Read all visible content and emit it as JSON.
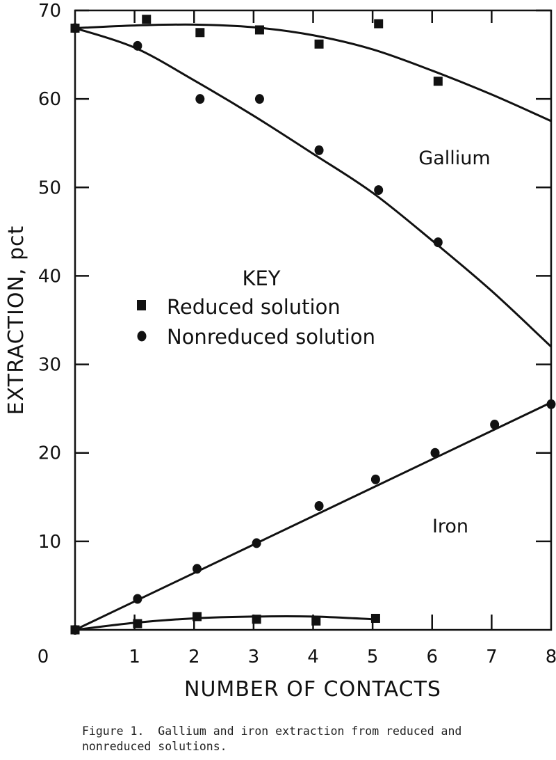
{
  "chart_data": {
    "type": "scatter",
    "title": "",
    "xlabel": "NUMBER OF CONTACTS",
    "ylabel": "EXTRACTION, pct",
    "xlim": [
      0,
      8
    ],
    "ylim": [
      0,
      70
    ],
    "xticks": [
      0,
      1,
      2,
      3,
      4,
      5,
      6,
      7,
      8
    ],
    "yticks": [
      10,
      20,
      30,
      40,
      50,
      60,
      70
    ],
    "x_tick_labels": [
      "0",
      "1",
      "2",
      "3",
      "4",
      "5",
      "6",
      "7",
      "8"
    ],
    "y_tick_labels": [
      "10",
      "20",
      "30",
      "40",
      "50",
      "60",
      "70"
    ],
    "grid": false,
    "legend": {
      "title": "KEY",
      "placement": "center-left",
      "entries": [
        {
          "marker": "square",
          "label": "Reduced solution"
        },
        {
          "marker": "circle",
          "label": "Nonreduced solution"
        }
      ]
    },
    "annotations": [
      "Gallium",
      "Iron"
    ],
    "series": [
      {
        "group": "Gallium",
        "marker": "square",
        "points": [
          [
            0,
            68
          ],
          [
            1.2,
            69
          ],
          [
            2.1,
            67.5
          ],
          [
            3.1,
            67.8
          ],
          [
            4.1,
            66.2
          ],
          [
            5.1,
            68.5
          ],
          [
            6.1,
            62
          ]
        ],
        "fit": [
          [
            0,
            68
          ],
          [
            1,
            68.3
          ],
          [
            2,
            68.4
          ],
          [
            3,
            68.1
          ],
          [
            4,
            67.2
          ],
          [
            5,
            65.6
          ],
          [
            6,
            63.2
          ],
          [
            7,
            60.5
          ],
          [
            8,
            57.5
          ]
        ]
      },
      {
        "group": "Gallium",
        "marker": "circle",
        "points": [
          [
            0,
            68
          ],
          [
            1.05,
            66
          ],
          [
            2.1,
            60
          ],
          [
            3.1,
            60
          ],
          [
            4.1,
            54.2
          ],
          [
            5.1,
            49.7
          ],
          [
            6.1,
            43.8
          ]
        ],
        "fit": [
          [
            0,
            68
          ],
          [
            1,
            65.8
          ],
          [
            2,
            62.1
          ],
          [
            3,
            58.1
          ],
          [
            4,
            53.8
          ],
          [
            5,
            49.4
          ],
          [
            6,
            44
          ],
          [
            7,
            38.3
          ],
          [
            8,
            32
          ]
        ]
      },
      {
        "group": "Iron",
        "marker": "circle",
        "points": [
          [
            0,
            0
          ],
          [
            1.05,
            3.5
          ],
          [
            2.05,
            6.9
          ],
          [
            3.05,
            9.8
          ],
          [
            4.1,
            14
          ],
          [
            5.05,
            17
          ],
          [
            6.05,
            20
          ],
          [
            7.05,
            23.2
          ],
          [
            8,
            25.5
          ]
        ],
        "fit": [
          [
            0,
            0
          ],
          [
            8,
            25.7
          ]
        ]
      },
      {
        "group": "Iron",
        "marker": "square",
        "points": [
          [
            0,
            0
          ],
          [
            1.05,
            0.7
          ],
          [
            2.05,
            1.5
          ],
          [
            3.05,
            1.2
          ],
          [
            4.05,
            1.0
          ],
          [
            5.05,
            1.3
          ]
        ],
        "fit": [
          [
            0,
            0
          ],
          [
            1,
            0.8
          ],
          [
            2,
            1.3
          ],
          [
            3,
            1.5
          ],
          [
            4,
            1.5
          ],
          [
            5,
            1.2
          ]
        ]
      }
    ]
  },
  "caption": "Figure 1.  Gallium and iron extraction from reduced and\nnonreduced solutions."
}
